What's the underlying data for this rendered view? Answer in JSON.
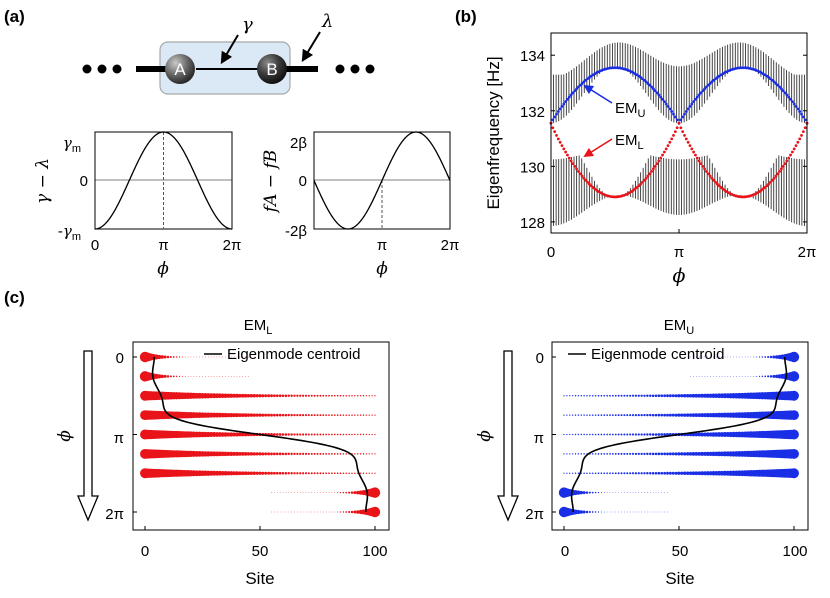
{
  "panel_labels": {
    "a": "(a)",
    "b": "(b)",
    "c": "(c)"
  },
  "schematic": {
    "site_a": "A",
    "site_b": "B",
    "gamma_label": "γ",
    "lambda_label": "λ"
  },
  "colors": {
    "red": "#e8141a",
    "blue": "#1a2ee6",
    "box_fill": "#dbe8f5",
    "box_stroke": "#a8a8a8",
    "gray": "#555555"
  },
  "chart_data": [
    {
      "id": "a-left",
      "type": "line",
      "function": "gamma - lambda = gamma_m * (-cos phi)",
      "ylabel": "γ − λ",
      "xlabel": "ϕ",
      "x_ticks": [
        "0",
        "π",
        "2π"
      ],
      "y_ticks": [
        "γm",
        "0",
        "-γm"
      ],
      "xlim": [
        0,
        6.2832
      ],
      "ylim": [
        -1,
        1
      ],
      "dashed_marker_at": "π"
    },
    {
      "id": "a-right",
      "type": "line",
      "function": "f_A - f_B = 2β * (-sin phi)",
      "ylabel": "fA − fB",
      "xlabel": "ϕ",
      "x_ticks": [
        "π",
        "2π"
      ],
      "y_ticks": [
        "2β",
        "0",
        "-2β"
      ],
      "xlim": [
        0,
        6.2832
      ],
      "ylim": [
        -1,
        1
      ],
      "dashed_marker_at": "π"
    },
    {
      "id": "b",
      "type": "scatter",
      "title": "",
      "ylabel": "Eigenfrequency [Hz]",
      "xlabel": "ϕ",
      "x_ticks": [
        "0",
        "π",
        "2π"
      ],
      "y_ticks": [
        "134",
        "132",
        "130",
        "128"
      ],
      "xlim": [
        0,
        6.2832
      ],
      "ylim": [
        127.6,
        134.8
      ],
      "series": [
        {
          "name": "EM_U",
          "label_main": "EM",
          "label_sub": "U",
          "color": "#1a2ee6"
        },
        {
          "name": "EM_L",
          "label_main": "EM",
          "label_sub": "L",
          "color": "#e8141a"
        },
        {
          "name": "bulk bands",
          "color": "#333333"
        }
      ]
    },
    {
      "id": "c-left",
      "type": "scatter",
      "title_main": "EM",
      "title_sub": "L",
      "xlabel": "Site",
      "ylabel": "ϕ",
      "x_ticks": [
        "0",
        "50",
        "100"
      ],
      "y_ticks": [
        "0",
        "π",
        "2π"
      ],
      "xlim": [
        0,
        100
      ],
      "legend": "Eigenmode centroid",
      "color": "#e8141a",
      "phi_rows": [
        0,
        0.125,
        0.25,
        0.375,
        0.5,
        0.625,
        0.75,
        0.875,
        1.0
      ],
      "localization": [
        "left",
        "left",
        "bulk",
        "bulk",
        "bulk",
        "bulk",
        "bulk",
        "right",
        "right"
      ]
    },
    {
      "id": "c-right",
      "type": "scatter",
      "title_main": "EM",
      "title_sub": "U",
      "xlabel": "Site",
      "ylabel": "ϕ",
      "x_ticks": [
        "0",
        "50",
        "100"
      ],
      "y_ticks": [
        "0",
        "π",
        "2π"
      ],
      "xlim": [
        0,
        100
      ],
      "legend": "Eigenmode centroid",
      "color": "#1a2ee6",
      "phi_rows": [
        0,
        0.125,
        0.25,
        0.375,
        0.5,
        0.625,
        0.75,
        0.875,
        1.0
      ],
      "localization": [
        "right",
        "right",
        "bulk",
        "bulk",
        "bulk",
        "bulk",
        "bulk",
        "left",
        "left"
      ]
    }
  ]
}
